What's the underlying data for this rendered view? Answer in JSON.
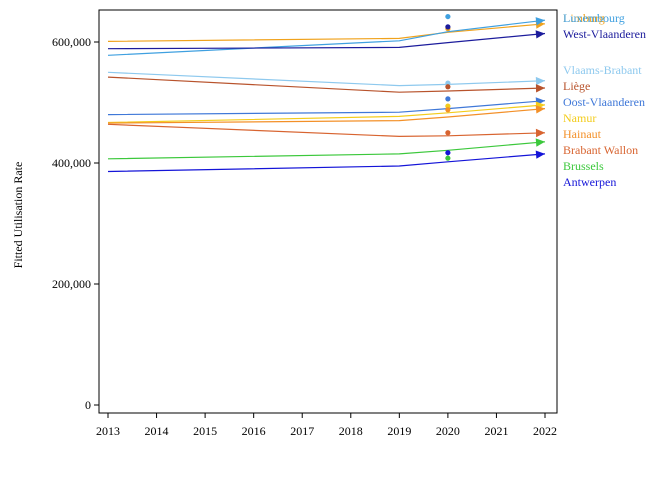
{
  "chart_data": {
    "type": "line",
    "title": "",
    "xlabel": "",
    "ylabel": "Fitted Utilisation Rate",
    "xlim": [
      2013,
      2022
    ],
    "ylim": [
      0,
      650000
    ],
    "x_ticks": [
      2013,
      2014,
      2015,
      2016,
      2017,
      2018,
      2019,
      2020,
      2021,
      2022
    ],
    "y_ticks": [
      0,
      200000,
      400000,
      600000
    ],
    "y_tick_labels": [
      "0",
      "200,000",
      "400,000",
      "600,000"
    ],
    "x_tick_labels": [
      "2013",
      "2014",
      "2015",
      "2016",
      "2017",
      "2018",
      "2019",
      "2020",
      "2021",
      "2022"
    ],
    "grid": false,
    "legend": "direct labels at right end of lines",
    "series": [
      {
        "name": "Limburg",
        "color": "#f0a21c",
        "x": [
          2013,
          2019,
          2020,
          2022
        ],
        "values": [
          601000,
          606000,
          616000,
          630000
        ],
        "point": 622000
      },
      {
        "name": "Luxembourg",
        "color": "#3fa0e0",
        "x": [
          2013,
          2019,
          2020,
          2022
        ],
        "values": [
          578000,
          602000,
          617000,
          636000
        ],
        "point": 642000
      },
      {
        "name": "West-Vlaanderen",
        "color": "#1c1c9c",
        "x": [
          2013,
          2019,
          2020,
          2022
        ],
        "values": [
          589000,
          591000,
          599000,
          614000
        ],
        "point": 625000
      },
      {
        "name": "Vlaams-Brabant",
        "color": "#8ec9ee",
        "x": [
          2013,
          2019,
          2020,
          2022
        ],
        "values": [
          550000,
          528000,
          530000,
          536000
        ],
        "point": 532000
      },
      {
        "name": "Liège",
        "color": "#b8532c",
        "x": [
          2013,
          2019,
          2020,
          2022
        ],
        "values": [
          542000,
          517000,
          519000,
          524000
        ],
        "point": 526000
      },
      {
        "name": "Oost-Vlaanderen",
        "color": "#3f78d8",
        "x": [
          2013,
          2019,
          2020,
          2022
        ],
        "values": [
          480000,
          484000,
          490000,
          503000
        ],
        "point": 506000
      },
      {
        "name": "Namur",
        "color": "#f3cc1c",
        "x": [
          2013,
          2019,
          2020,
          2022
        ],
        "values": [
          467000,
          477000,
          483000,
          496000
        ],
        "point": 494000
      },
      {
        "name": "Hainaut",
        "color": "#f39028",
        "x": [
          2013,
          2019,
          2020,
          2022
        ],
        "values": [
          466000,
          470000,
          476000,
          490000
        ],
        "point": 488000
      },
      {
        "name": "Brabant Wallon",
        "color": "#d86430",
        "x": [
          2013,
          2019,
          2020,
          2022
        ],
        "values": [
          464000,
          444000,
          445000,
          450000
        ],
        "point": 450000
      },
      {
        "name": "Brussels",
        "color": "#3cc83c",
        "x": [
          2013,
          2019,
          2020,
          2022
        ],
        "values": [
          407000,
          415000,
          421000,
          435000
        ],
        "point": 408000
      },
      {
        "name": "Antwerpen",
        "color": "#1414d8",
        "x": [
          2013,
          2019,
          2020,
          2022
        ],
        "values": [
          386000,
          395000,
          402000,
          415000
        ],
        "point": 417000
      }
    ],
    "label_order": [
      "Limburg",
      "Luxembourg",
      "West-Vlaanderen",
      "Vlaams-Brabant",
      "Liège",
      "Oost-Vlaanderen",
      "Namur",
      "Hainaut",
      "Brabant Wallon",
      "Brussels",
      "Antwerpen"
    ],
    "point_year": 2020,
    "colors": {
      "axis": "#000000",
      "background": "#ffffff"
    }
  }
}
